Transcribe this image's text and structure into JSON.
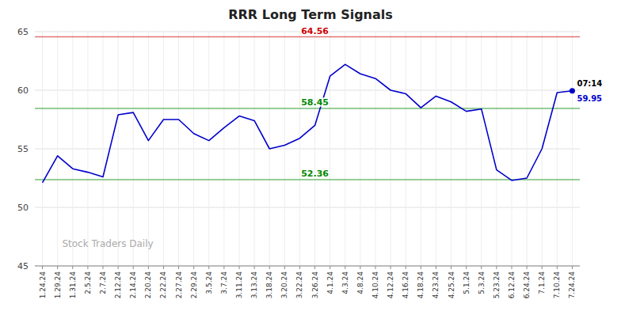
{
  "chart_data": {
    "type": "line",
    "title": "RRR Long Term Signals",
    "watermark": "Stock Traders Daily",
    "categories": [
      "1.24.24",
      "1.29.24",
      "1.31.24",
      "2.5.24",
      "2.7.24",
      "2.12.24",
      "2.14.24",
      "2.20.24",
      "2.22.24",
      "2.27.24",
      "2.29.24",
      "3.5.24",
      "3.7.24",
      "3.11.24",
      "3.13.24",
      "3.18.24",
      "3.20.24",
      "3.22.24",
      "3.26.24",
      "4.1.24",
      "4.3.24",
      "4.8.24",
      "4.10.24",
      "4.12.24",
      "4.16.24",
      "4.18.24",
      "4.23.24",
      "4.25.24",
      "5.1.24",
      "5.3.24",
      "5.23.24",
      "6.12.24",
      "6.24.24",
      "7.1.24",
      "7.10.24",
      "7.24.24"
    ],
    "values": [
      52.1,
      54.4,
      53.3,
      53.0,
      52.6,
      57.9,
      58.1,
      55.7,
      57.5,
      57.5,
      56.3,
      55.7,
      56.8,
      57.8,
      57.4,
      55.0,
      55.3,
      55.9,
      57.0,
      61.2,
      62.2,
      61.4,
      61.0,
      60.0,
      59.7,
      58.5,
      59.5,
      59.0,
      58.2,
      58.4,
      53.2,
      52.3,
      52.5,
      55.0,
      59.8,
      59.95
    ],
    "color": "#0000cc",
    "reference_lines": [
      {
        "value": 64.56,
        "color": "#cc0000"
      },
      {
        "value": 58.45,
        "color": "#008800"
      },
      {
        "value": 52.36,
        "color": "#008800"
      }
    ],
    "annotations": [
      "07:14"
    ],
    "data_labels": false,
    "ylim": [
      45,
      65
    ],
    "yticks": [
      45,
      50,
      55,
      60,
      65
    ],
    "grid": true
  }
}
